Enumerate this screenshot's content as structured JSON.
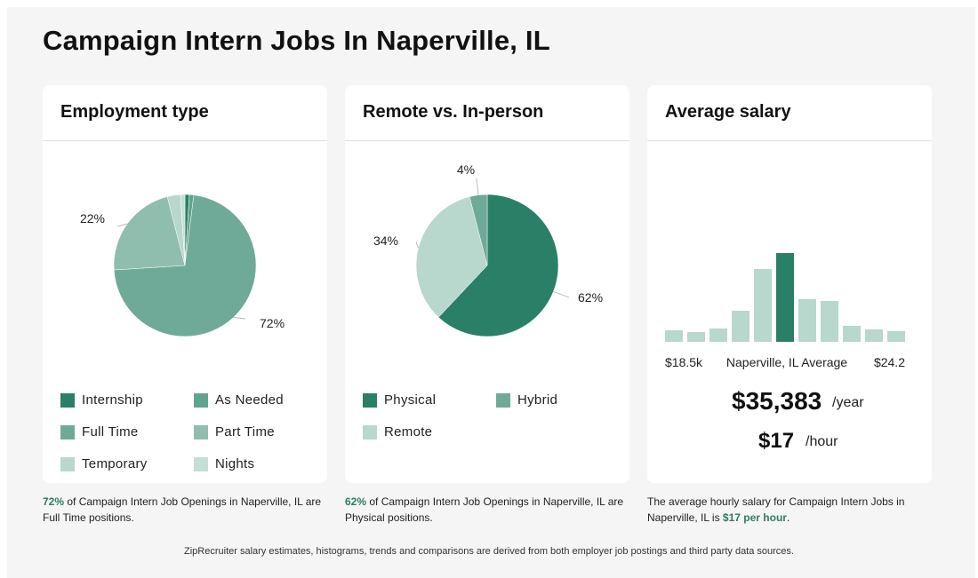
{
  "title": "Campaign Intern Jobs In Naperville, IL",
  "colors": {
    "dark": "#2a7f67",
    "medium": "#5fa58e",
    "mid2": "#6faa98",
    "light": "#8fbeae",
    "lighter": "#b8d7cd",
    "highlight": "#2e7d62"
  },
  "cards": {
    "employment": {
      "title": "Employment type"
    },
    "remote": {
      "title": "Remote vs. In-person"
    },
    "salary": {
      "title": "Average salary"
    }
  },
  "chart_data": [
    {
      "type": "pie",
      "title": "Employment type",
      "slices": [
        {
          "label": "Internship",
          "value": 1,
          "color": "#2a7f67"
        },
        {
          "label": "As Needed",
          "value": 1,
          "color": "#5fa58e"
        },
        {
          "label": "Full Time",
          "value": 72,
          "color": "#6faa98"
        },
        {
          "label": "Part Time",
          "value": 22,
          "color": "#8fbeae"
        },
        {
          "label": "Temporary",
          "value": 3,
          "color": "#b8d7cd"
        },
        {
          "label": "Nights",
          "value": 1,
          "color": "#c5ded6"
        }
      ],
      "data_labels": [
        {
          "slice": "Full Time",
          "text": "72%"
        },
        {
          "slice": "Part Time",
          "text": "22%"
        }
      ]
    },
    {
      "type": "pie",
      "title": "Remote vs. In-person",
      "slices": [
        {
          "label": "Physical",
          "value": 62,
          "color": "#2a7f67"
        },
        {
          "label": "Remote",
          "value": 34,
          "color": "#b8d7cd"
        },
        {
          "label": "Hybrid",
          "value": 4,
          "color": "#6faa98"
        }
      ],
      "data_labels": [
        {
          "slice": "Physical",
          "text": "62%"
        },
        {
          "slice": "Remote",
          "text": "34%"
        },
        {
          "slice": "Hybrid",
          "text": "4%"
        }
      ]
    },
    {
      "type": "bar",
      "title": "Average salary",
      "values": [
        13,
        11,
        15,
        35,
        82,
        100,
        48,
        46,
        18,
        14,
        12
      ],
      "highlight_index": 5,
      "range_labels": {
        "min": "$18.5k",
        "middle": "Naperville, IL Average",
        "max": "$24.2"
      }
    }
  ],
  "legends": {
    "employment": [
      "Internship",
      "As Needed",
      "Full Time",
      "Part Time",
      "Temporary",
      "Nights"
    ],
    "remote": [
      "Physical",
      "Hybrid",
      "Remote"
    ]
  },
  "salary": {
    "yearly": "$35,383",
    "yearly_unit": "/year",
    "hourly": "$17",
    "hourly_unit": "/hour"
  },
  "captions": {
    "employment": {
      "highlight": "72%",
      "text": " of Campaign Intern Job Openings in Naperville, IL are Full Time positions."
    },
    "remote": {
      "highlight": "62%",
      "text": " of Campaign Intern Job Openings in Naperville, IL are Physical positions."
    },
    "salary": {
      "text": "The average hourly salary for Campaign Intern Jobs in Naperville, IL is ",
      "highlight": "$17 per hour",
      "end": "."
    }
  },
  "footer": "ZipRecruiter salary estimates, histograms, trends and comparisons are derived from both employer job postings and third party data sources."
}
